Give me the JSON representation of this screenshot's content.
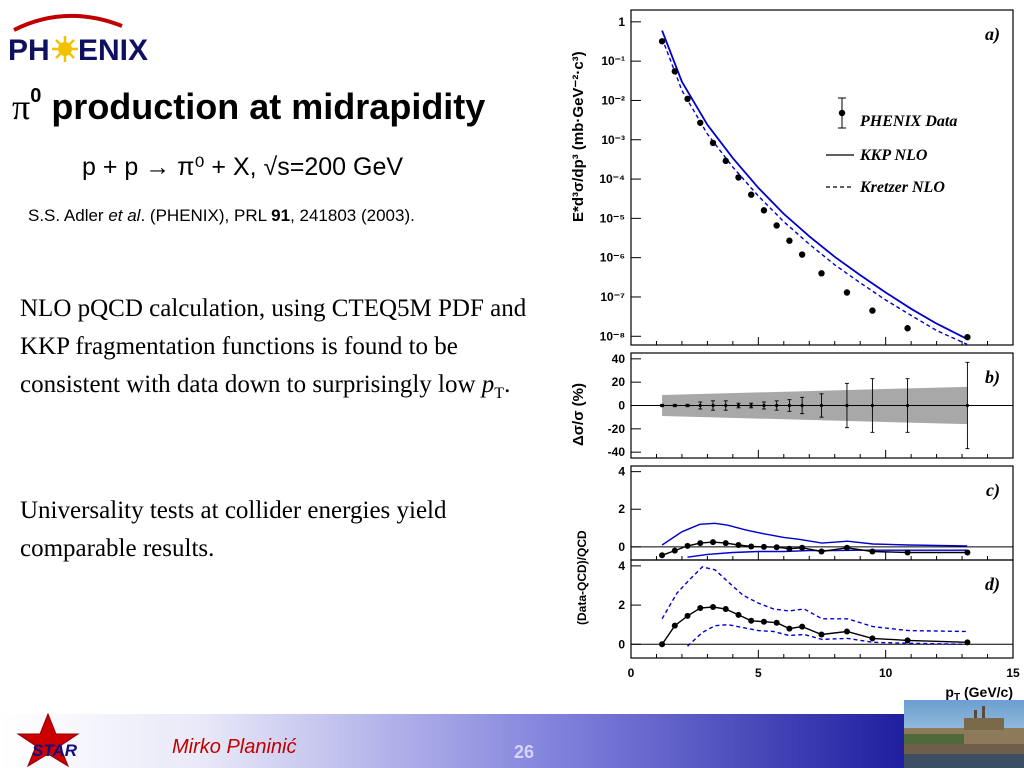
{
  "logo": {
    "text": "PH ENIX"
  },
  "slide": {
    "title_symbol": "π",
    "title_sup": "0",
    "title_rest": " production at midrapidity",
    "reaction": "p + p → π⁰ + X, √s=200 GeV",
    "citation": {
      "authors": "S.S. Adler ",
      "etal": "et al",
      "rest1": ". (PHENIX), PRL ",
      "volume": "91",
      "rest2": ", 241803 (2003)."
    },
    "paragraph1_text": "NLO pQCD calculation, using CTEQ5M PDF and KKP fragmentation functions is found to be consistent with data down to surprisingly low ",
    "paragraph1_var": "p",
    "paragraph1_sub": "T",
    "paragraph1_end": ".",
    "paragraph2": "Universality tests at collider energies yield comparable results."
  },
  "footer": {
    "logo_text": "STAR",
    "author": "Mirko Planinić",
    "page": "26"
  },
  "colors": {
    "theory": "#0000cc",
    "band": "#a8a8a8",
    "author": "#c00000"
  },
  "chart_data": [
    {
      "panel": "a)",
      "type": "scatter",
      "y_scale": "log",
      "ylabel": "E*d³σ/dp³ (mb·GeV⁻²·c³)",
      "y_ticks": [
        "1",
        "10⁻¹",
        "10⁻²",
        "10⁻³",
        "10⁻⁴",
        "10⁻⁵",
        "10⁻⁶",
        "10⁻⁷",
        "10⁻⁸"
      ],
      "ylim": [
        6e-09,
        2
      ],
      "xlim": [
        0,
        15
      ],
      "legend": [
        "PHENIX Data",
        "KKP NLO",
        "Kretzer NLO"
      ],
      "series": [
        {
          "name": "PHENIX Data",
          "x": [
            1.22,
            1.72,
            2.22,
            2.72,
            3.22,
            3.72,
            4.22,
            4.72,
            5.22,
            5.72,
            6.22,
            6.72,
            7.48,
            8.48,
            9.48,
            10.86,
            13.21
          ],
          "y": [
            0.32,
            0.055,
            0.011,
            0.0027,
            0.00083,
            0.00029,
            0.00011,
            4e-05,
            1.6e-05,
            6.6e-06,
            2.7e-06,
            1.2e-06,
            4e-07,
            1.3e-07,
            4.5e-08,
            1.6e-08,
            9.5e-09
          ]
        },
        {
          "name": "KKP NLO",
          "x": [
            1.22,
            2,
            3,
            4,
            5,
            6,
            7,
            8,
            9,
            10,
            11,
            12,
            13.2
          ],
          "y": [
            0.6,
            0.03,
            0.0024,
            0.00034,
            6e-05,
            1.3e-05,
            3.5e-06,
            1.05e-06,
            3.6e-07,
            1.3e-07,
            5e-08,
            2.1e-08,
            8.5e-09
          ]
        },
        {
          "name": "Kretzer NLO",
          "x": [
            1.22,
            2,
            3,
            4,
            5,
            6,
            7,
            8,
            9,
            10,
            11,
            12,
            13.2
          ],
          "y": [
            0.38,
            0.018,
            0.0014,
            0.0002,
            3.7e-05,
            8.2e-06,
            2.2e-06,
            6.6e-07,
            2.3e-07,
            8.4e-08,
            3.4e-08,
            1.4e-08,
            6.2e-09
          ]
        }
      ]
    },
    {
      "panel": "b)",
      "type": "scatter",
      "ylabel": "Δσ/σ (%)",
      "y_ticks": [
        "40",
        "20",
        "0",
        "-20",
        "-40"
      ],
      "ylim": [
        -45,
        45
      ],
      "xlim": [
        0,
        15
      ],
      "band_percent": {
        "x": [
          1.22,
          13.2
        ],
        "half_width": [
          9,
          16
        ]
      },
      "x": [
        1.22,
        1.72,
        2.22,
        2.72,
        3.22,
        3.72,
        4.22,
        4.72,
        5.22,
        5.72,
        6.22,
        6.72,
        7.48,
        8.48,
        9.48,
        10.86,
        13.21
      ],
      "y": [
        0,
        0,
        0,
        0,
        0,
        0,
        0,
        0,
        0,
        0,
        0,
        0,
        0,
        0,
        0,
        0,
        0
      ],
      "err": [
        1,
        1,
        1,
        3,
        4,
        4,
        2,
        2,
        3,
        4,
        5,
        7,
        10,
        19,
        23,
        23,
        37
      ]
    },
    {
      "panel": "c)",
      "type": "line",
      "ylabel": "(Data-QCD)/QCD",
      "y_ticks": [
        "4",
        "2",
        "0"
      ],
      "ylim": [
        -0.7,
        4.3
      ],
      "xlim": [
        0,
        15
      ],
      "series": [
        {
          "name": "data",
          "x": [
            1.22,
            1.72,
            2.22,
            2.72,
            3.22,
            3.72,
            4.22,
            4.72,
            5.22,
            5.72,
            6.22,
            6.72,
            7.48,
            8.48,
            9.48,
            10.86,
            13.21
          ],
          "y": [
            -0.45,
            -0.2,
            0.05,
            0.2,
            0.25,
            0.2,
            0.1,
            0.02,
            0.0,
            -0.02,
            -0.1,
            -0.05,
            -0.25,
            -0.05,
            -0.25,
            -0.3,
            -0.3
          ]
        },
        {
          "name": "upper",
          "x": [
            1.22,
            2.0,
            2.7,
            3.3,
            3.8,
            4.5,
            5.2,
            6.0,
            6.6,
            7.5,
            8.5,
            9.5,
            10.9,
            13.2
          ],
          "y": [
            0.1,
            0.8,
            1.2,
            1.25,
            1.15,
            0.9,
            0.7,
            0.5,
            0.4,
            0.2,
            0.3,
            0.15,
            0.1,
            0.05
          ]
        },
        {
          "name": "lower",
          "x": [
            2.22,
            3.0,
            4.0,
            5.0,
            6.0,
            7.0,
            8.0,
            9.0,
            10.0,
            11.0,
            12.0,
            13.2
          ],
          "y": [
            -0.55,
            -0.4,
            -0.3,
            -0.25,
            -0.25,
            -0.2,
            -0.2,
            -0.18,
            -0.18,
            -0.18,
            -0.18,
            -0.18
          ]
        }
      ]
    },
    {
      "panel": "d)",
      "type": "line",
      "y_ticks": [
        "4",
        "2",
        "0"
      ],
      "ylim": [
        -0.7,
        4.3
      ],
      "xlim": [
        0,
        15
      ],
      "xlabel": "p_T (GeV/c)",
      "x_ticks": [
        "0",
        "5",
        "10",
        "15"
      ],
      "series": [
        {
          "name": "data",
          "x": [
            1.22,
            1.72,
            2.22,
            2.72,
            3.22,
            3.72,
            4.22,
            4.72,
            5.22,
            5.72,
            6.22,
            6.72,
            7.48,
            8.48,
            9.48,
            10.86,
            13.21
          ],
          "y": [
            0.0,
            0.95,
            1.45,
            1.85,
            1.9,
            1.8,
            1.5,
            1.2,
            1.15,
            1.1,
            0.8,
            0.9,
            0.5,
            0.65,
            0.3,
            0.2,
            0.1
          ]
        },
        {
          "name": "upper",
          "x": [
            1.22,
            1.8,
            2.3,
            2.8,
            3.3,
            3.8,
            4.4,
            5.0,
            5.6,
            6.2,
            6.8,
            7.5,
            8.5,
            9.5,
            10.9,
            13.2
          ],
          "y": [
            1.3,
            2.6,
            3.3,
            3.95,
            3.8,
            3.2,
            2.5,
            2.1,
            1.8,
            1.7,
            1.8,
            1.3,
            1.3,
            0.9,
            0.7,
            0.65
          ]
        },
        {
          "name": "lower",
          "x": [
            2.22,
            2.8,
            3.3,
            3.8,
            4.4,
            5.0,
            5.6,
            6.2,
            6.8,
            7.5,
            8.5,
            9.5,
            10.9,
            13.2
          ],
          "y": [
            -0.1,
            0.6,
            0.95,
            1.0,
            0.85,
            0.7,
            0.65,
            0.45,
            0.5,
            0.25,
            0.3,
            0.1,
            0.05,
            0.0
          ]
        }
      ]
    }
  ]
}
